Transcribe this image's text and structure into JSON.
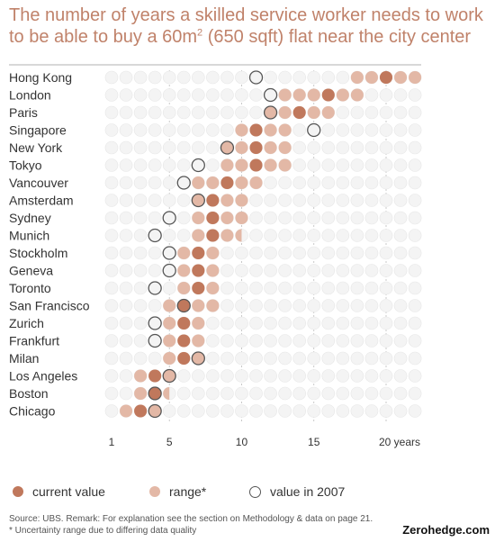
{
  "title": {
    "line1": "The number of years a skilled service worker needs to work",
    "line2_pre": "to be able to buy a 60m",
    "line2_sup": "2",
    "line2_post": " (650 sqft) flat near the city center"
  },
  "chart_data": {
    "type": "scatter",
    "title": "The number of years a skilled service worker needs to work to be able to buy a 60m2 (650 sqft) flat near the city center",
    "x_ticks": [
      {
        "value": 1,
        "label": "1"
      },
      {
        "value": 5,
        "label": "5"
      },
      {
        "value": 10,
        "label": "10"
      },
      {
        "value": 15,
        "label": "15"
      },
      {
        "value": 20,
        "label": "20 years"
      }
    ],
    "xlim": [
      0,
      22
    ],
    "categories": [
      "Hong Kong",
      "London",
      "Paris",
      "Singapore",
      "New York",
      "Tokyo",
      "Vancouver",
      "Amsterdam",
      "Sydney",
      "Munich",
      "Stockholm",
      "Geneva",
      "Toronto",
      "San Francisco",
      "Zurich",
      "Frankfurt",
      "Milan",
      "Los Angeles",
      "Boston",
      "Chicago"
    ],
    "series": [
      {
        "name": "current value",
        "color": "#c0785c",
        "values": [
          20,
          16,
          14,
          11,
          11,
          11,
          9,
          8,
          8,
          8,
          7,
          7,
          7,
          6,
          6,
          6,
          6,
          4,
          4,
          3
        ]
      },
      {
        "name": "range*",
        "color": "#e3b8a6",
        "low": [
          17.5,
          13,
          11.5,
          9.5,
          8.5,
          8.5,
          7,
          6.5,
          6.5,
          6.5,
          5.5,
          5.5,
          5.5,
          4.5,
          4.5,
          4.5,
          4.5,
          3,
          2.5,
          2
        ],
        "high": [
          22,
          18,
          16,
          13,
          13,
          13,
          11,
          10,
          10,
          9.5,
          8,
          8,
          8,
          8,
          7,
          7,
          7,
          5,
          4.5,
          4
        ]
      },
      {
        "name": "value in 2007",
        "color": "#555555",
        "values": [
          11,
          12,
          12,
          15,
          9,
          7,
          6,
          7,
          5,
          4,
          5,
          5,
          4,
          6,
          4,
          4,
          7,
          5,
          4,
          4
        ]
      }
    ],
    "legend_position": "bottom"
  },
  "legend": {
    "current": "current value",
    "range": "range*",
    "y2007": "value in 2007"
  },
  "source": {
    "line1": "Source: UBS. Remark: For explanation see the section on Methodology & data on page 21.",
    "line2": "* Uncertainty range due to differing data quality"
  },
  "brand": "Zerohedge.com",
  "colors": {
    "title": "#c0826a",
    "current": "#c0785c",
    "range": "#e3b8a6",
    "empty": "#f4f4f4"
  }
}
